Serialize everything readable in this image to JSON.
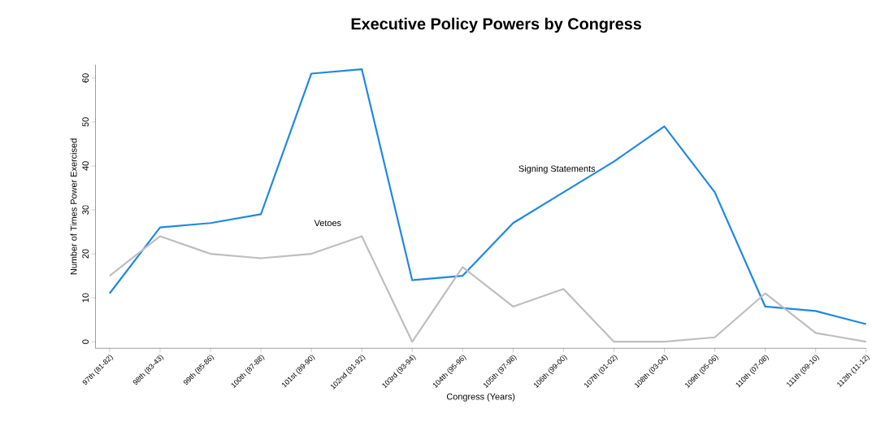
{
  "chart_data": {
    "type": "line",
    "title": "Executive Policy Powers by Congress",
    "xlabel": "Congress (Years)",
    "ylabel": "Number of Times Power Exercised",
    "categories": [
      "97th (81-82)",
      "98th (83-43)",
      "99th (85-86)",
      "100th (87-88)",
      "101st (89-90)",
      "102nd (91-92)",
      "103rd (93-94)",
      "104th (95-96)",
      "105th (97-98)",
      "106th (99-00)",
      "107th (01-02)",
      "108th (03-04)",
      "109th (05-06)",
      "110th (07-08)",
      "111th (09-10)",
      "112th (11-12)"
    ],
    "series": [
      {
        "name": "Signing Statements",
        "color": "#1e88e5",
        "values": [
          11,
          26,
          27,
          29,
          61,
          62,
          14,
          15,
          27,
          34,
          41,
          49,
          34,
          8,
          7,
          4
        ]
      },
      {
        "name": "Vetoes",
        "color": "#bebebe",
        "values": [
          15,
          24,
          20,
          19,
          20,
          24,
          0,
          17,
          8,
          12,
          0,
          0,
          1,
          11,
          2,
          0
        ]
      }
    ],
    "ylim": [
      -1.5,
      63
    ],
    "yticks": [
      0,
      10,
      20,
      30,
      40,
      50,
      60
    ],
    "grid": false,
    "legend": false,
    "marker": "none",
    "line_style": "solid"
  }
}
